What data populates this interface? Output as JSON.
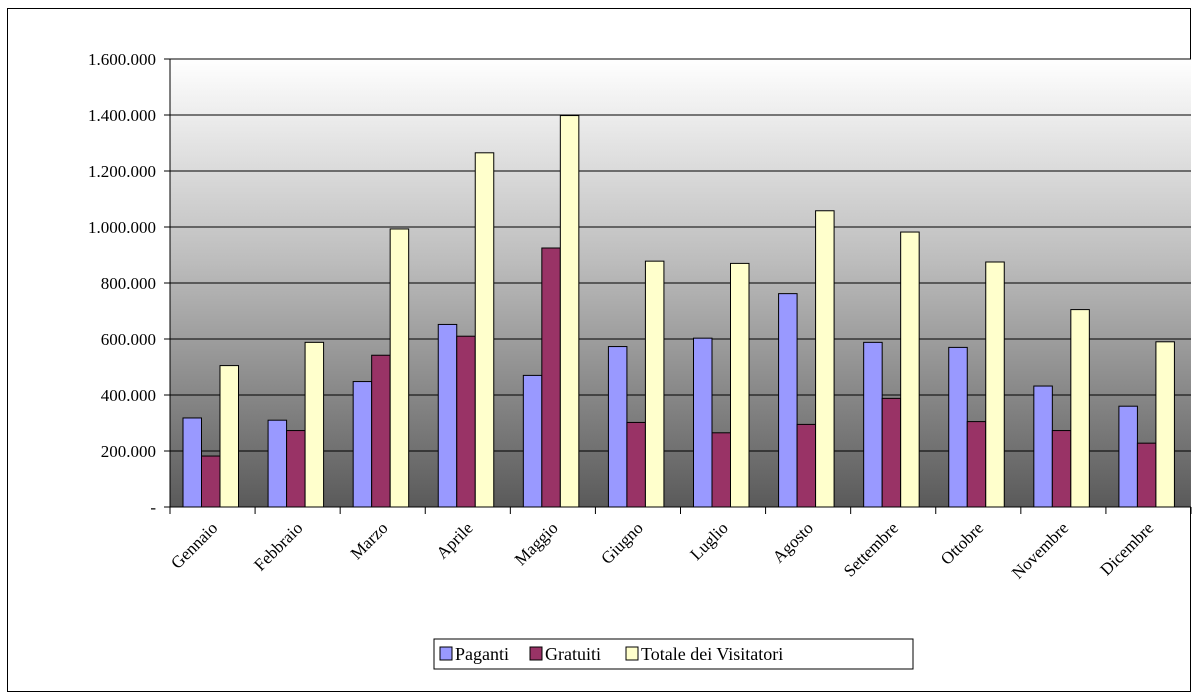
{
  "chart_data": {
    "type": "bar",
    "categories": [
      "Gennaio",
      "Febbraio",
      "Marzo",
      "Aprile",
      "Maggio",
      "Giugno",
      "Luglio",
      "Agosto",
      "Settembre",
      "Ottobre",
      "Novembre",
      "Dicembre"
    ],
    "series": [
      {
        "name": "Paganti",
        "color": "#9999ff",
        "values": [
          318000,
          310000,
          448000,
          652000,
          470000,
          573000,
          603000,
          762000,
          588000,
          570000,
          432000,
          360000
        ]
      },
      {
        "name": "Gratuiti",
        "color": "#993366",
        "values": [
          182000,
          273000,
          542000,
          610000,
          925000,
          302000,
          265000,
          295000,
          388000,
          305000,
          273000,
          228000
        ]
      },
      {
        "name": "Totale dei Visitatori",
        "color": "#ffffcc",
        "values": [
          505000,
          588000,
          993000,
          1265000,
          1398000,
          878000,
          870000,
          1058000,
          982000,
          875000,
          705000,
          590000
        ]
      }
    ],
    "y_ticks": [
      "-",
      "200.000",
      "400.000",
      "600.000",
      "800.000",
      "1.000.000",
      "1.200.000",
      "1.400.000",
      "1.600.000"
    ],
    "ylim": [
      0,
      1600000
    ],
    "grid": true,
    "legend_position": "bottom",
    "title": "",
    "xlabel": "",
    "ylabel": ""
  }
}
